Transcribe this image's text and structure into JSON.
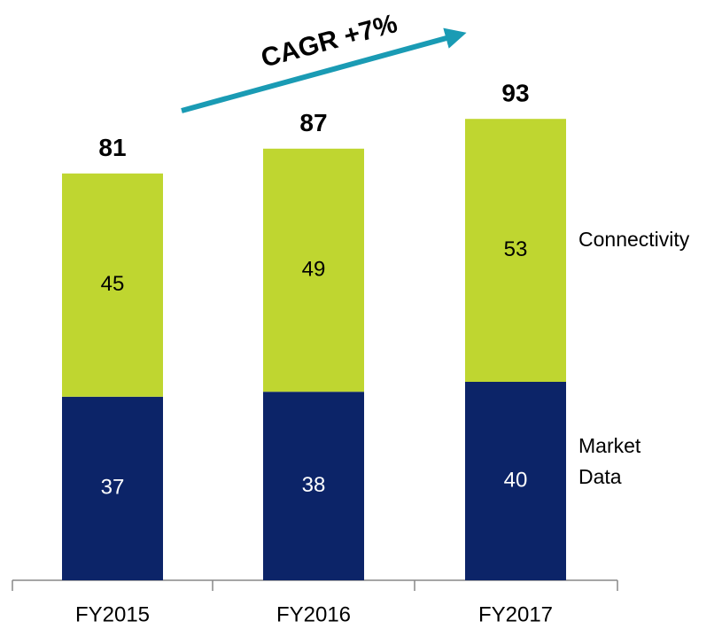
{
  "chart_data": {
    "type": "stacked_bar",
    "categories": [
      "FY2015",
      "FY2016",
      "FY2017"
    ],
    "series": [
      {
        "name": "Market Data",
        "color": "#0c2468",
        "values": [
          37,
          38,
          40
        ]
      },
      {
        "name": "Connectivity",
        "color": "#bfd630",
        "values": [
          45,
          49,
          53
        ]
      }
    ],
    "totals": [
      81,
      87,
      93
    ],
    "annotation": "CAGR +7%",
    "annotation_color": "#1a9bb4"
  }
}
